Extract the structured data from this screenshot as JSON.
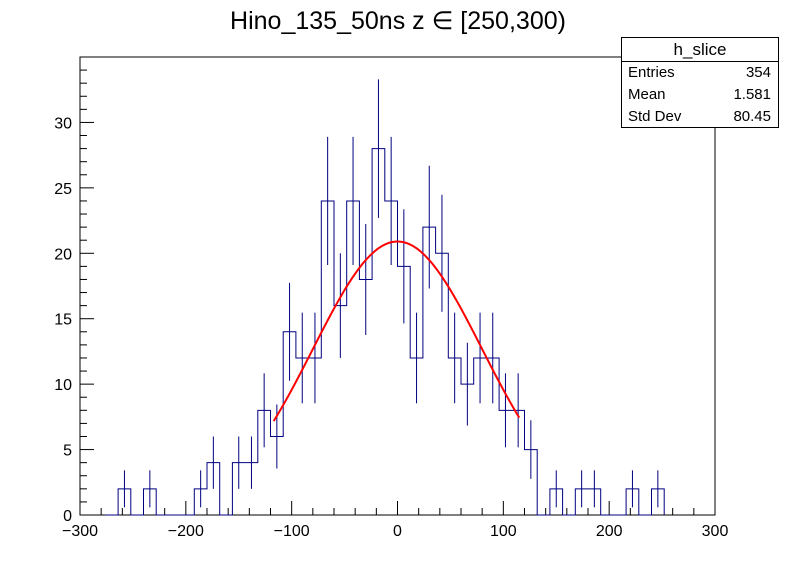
{
  "title": "Hino_135_50ns z  ∈ [250,300)",
  "stats": {
    "name": "h_slice",
    "rows": [
      {
        "label": "Entries",
        "value": "354"
      },
      {
        "label": "Mean",
        "value": "1.581"
      },
      {
        "label": "Std Dev",
        "value": "80.45"
      }
    ]
  },
  "chart_data": {
    "type": "histogram",
    "title": "Hino_135_50ns z  ∈ [250,300)",
    "xlim": [
      -300,
      300
    ],
    "ylim": [
      0,
      35
    ],
    "bin_width": 12,
    "xticks": [
      -300,
      -200,
      -100,
      0,
      100,
      200,
      300
    ],
    "xtick_labels": [
      "−300",
      "−200",
      "−100",
      "0",
      "100",
      "200",
      "300"
    ],
    "yticks": [
      0,
      5,
      10,
      15,
      20,
      25,
      30
    ],
    "ytick_labels": [
      "0",
      "5",
      "10",
      "15",
      "20",
      "25",
      "30"
    ],
    "bins": [
      {
        "x": -276,
        "count": 0
      },
      {
        "x": -264,
        "count": 2
      },
      {
        "x": -252,
        "count": 0
      },
      {
        "x": -240,
        "count": 2
      },
      {
        "x": -228,
        "count": 0
      },
      {
        "x": -216,
        "count": 0
      },
      {
        "x": -204,
        "count": 0
      },
      {
        "x": -192,
        "count": 2
      },
      {
        "x": -180,
        "count": 4
      },
      {
        "x": -168,
        "count": 0
      },
      {
        "x": -156,
        "count": 4
      },
      {
        "x": -144,
        "count": 4
      },
      {
        "x": -132,
        "count": 8
      },
      {
        "x": -120,
        "count": 6
      },
      {
        "x": -108,
        "count": 14
      },
      {
        "x": -96,
        "count": 12
      },
      {
        "x": -84,
        "count": 12
      },
      {
        "x": -72,
        "count": 24
      },
      {
        "x": -60,
        "count": 16
      },
      {
        "x": -48,
        "count": 24
      },
      {
        "x": -36,
        "count": 18
      },
      {
        "x": -24,
        "count": 28
      },
      {
        "x": -12,
        "count": 24
      },
      {
        "x": 0,
        "count": 19
      },
      {
        "x": 12,
        "count": 12
      },
      {
        "x": 24,
        "count": 22
      },
      {
        "x": 36,
        "count": 20
      },
      {
        "x": 48,
        "count": 12
      },
      {
        "x": 60,
        "count": 10
      },
      {
        "x": 72,
        "count": 12
      },
      {
        "x": 84,
        "count": 12
      },
      {
        "x": 96,
        "count": 8
      },
      {
        "x": 108,
        "count": 8
      },
      {
        "x": 120,
        "count": 5
      },
      {
        "x": 132,
        "count": 0
      },
      {
        "x": 144,
        "count": 2
      },
      {
        "x": 156,
        "count": 0
      },
      {
        "x": 168,
        "count": 2
      },
      {
        "x": 180,
        "count": 2
      },
      {
        "x": 192,
        "count": 0
      },
      {
        "x": 204,
        "count": 0
      },
      {
        "x": 216,
        "count": 2
      },
      {
        "x": 228,
        "count": 0
      },
      {
        "x": 240,
        "count": 2
      }
    ],
    "fit": {
      "type": "gaussian",
      "constant": 20.9,
      "mean": 0,
      "sigma": 80,
      "range": [
        -117,
        115
      ],
      "color": "#ff0000"
    },
    "colors": {
      "histogram": "#000080",
      "fit": "#ff0000",
      "axis": "#000000"
    }
  }
}
